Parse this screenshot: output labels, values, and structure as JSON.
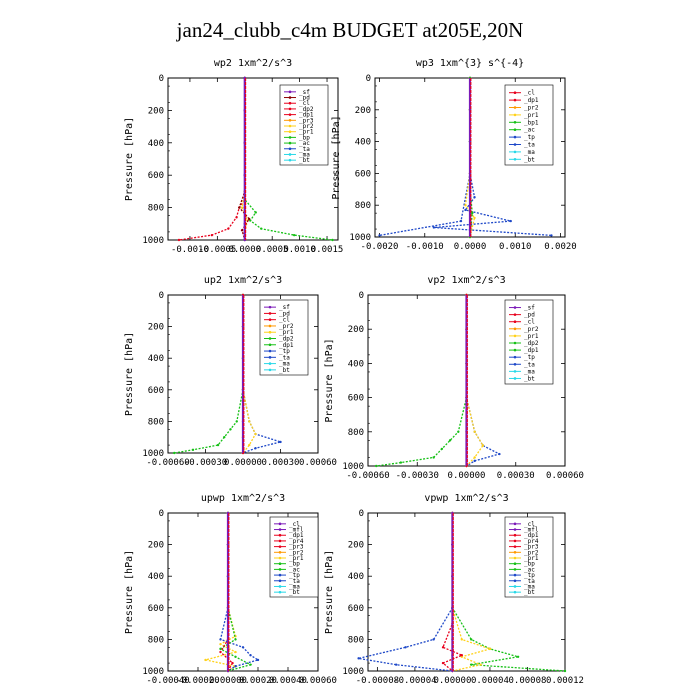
{
  "title": "jan24_clubb_c4m  BUDGET at205E,20N",
  "colors": {
    "red": "#e8001c",
    "darkred": "#8b0000",
    "orange": "#ff9900",
    "yellow": "#ffd21a",
    "green": "#16c016",
    "blue": "#1e48c8",
    "cyan": "#27d8e8",
    "purple": "#7b19b8",
    "gray": "#9a9a9a"
  },
  "chart_data": [
    {
      "type": "line",
      "title": "wp2  1xm^2/s^3",
      "ylabel": "Pressure [hPa]",
      "xlim": [
        -0.0014,
        0.0017
      ],
      "ylim": [
        1000,
        0
      ],
      "xticks": [
        -0.001,
        -0.0005,
        0.0,
        0.0005,
        0.001,
        0.0015
      ],
      "xtick_labels": [
        "-0.0010",
        "-0.0005",
        "0.0000",
        "0.0005",
        "0.0010",
        "0.0015"
      ],
      "yticks": [
        0,
        200,
        400,
        600,
        800,
        1000
      ],
      "yticks_labels": [
        "0",
        "200",
        "400",
        "600",
        "800",
        "1000"
      ],
      "legend": [
        "_sf",
        "_pd",
        "_cl",
        "_dp2",
        "_dp1",
        "_pr3",
        "_pr2",
        "_pr1",
        "_bp",
        "_ac",
        "_ta",
        "_ma",
        "_bt"
      ],
      "legend_colors": [
        "purple",
        "darkred",
        "red",
        "red",
        "red",
        "orange",
        "yellow",
        "yellow",
        "green",
        "green",
        "blue",
        "cyan",
        "cyan"
      ],
      "series": [
        {
          "name": "_dp1",
          "color": "red",
          "x": [
            0,
            0,
            0,
            0,
            0,
            -0.0001,
            -0.00015,
            -0.0003,
            -0.0006,
            -0.0012
          ],
          "y": [
            0,
            200,
            400,
            600,
            750,
            800,
            860,
            930,
            970,
            1000
          ]
        },
        {
          "name": "_bp",
          "color": "green",
          "x": [
            0,
            0,
            0,
            0,
            0,
            0.0002,
            0.0001,
            0.0003,
            0.0009,
            0.0016
          ],
          "y": [
            0,
            200,
            400,
            600,
            750,
            830,
            880,
            930,
            970,
            1000
          ]
        },
        {
          "name": "_pr1",
          "color": "yellow",
          "x": [
            0,
            0,
            0,
            0,
            -5e-05,
            5e-05,
            0,
            0
          ],
          "y": [
            0,
            200,
            400,
            700,
            800,
            880,
            950,
            1000
          ]
        },
        {
          "name": "_dp2",
          "color": "darkred",
          "x": [
            0,
            0,
            0,
            0,
            -0.0001,
            8e-05,
            -5e-05,
            0
          ],
          "y": [
            0,
            200,
            400,
            700,
            800,
            870,
            940,
            1000
          ]
        },
        {
          "name": "_ta",
          "color": "blue",
          "x": [
            0,
            0,
            0,
            0,
            0,
            0,
            0
          ],
          "y": [
            0,
            200,
            400,
            600,
            800,
            900,
            1000
          ]
        },
        {
          "name": "_cl",
          "color": "purple",
          "x": [
            0,
            0,
            0,
            0,
            0,
            0,
            0
          ],
          "y": [
            0,
            200,
            400,
            600,
            800,
            900,
            1000
          ]
        }
      ]
    },
    {
      "type": "line",
      "title": "wp3  1xm^{3} s^{-4}",
      "ylabel": "Pressure [hPa]",
      "xlim": [
        -0.0021,
        0.0021
      ],
      "ylim": [
        1000,
        0
      ],
      "xticks": [
        -0.002,
        -0.001,
        0.0,
        0.001,
        0.002
      ],
      "xtick_labels": [
        "-0.0020",
        "-0.0010",
        "0.0000",
        "0.0010",
        "0.0020"
      ],
      "yticks": [
        0,
        200,
        400,
        600,
        800,
        1000
      ],
      "yticks_labels": [
        "0",
        "200",
        "400",
        "600",
        "800",
        "1000"
      ],
      "legend": [
        "_cl",
        "_dp1",
        "_pr2",
        "_pr1",
        "_bp1",
        "_ac",
        "_tp",
        "_ta",
        "_ma",
        "_bt"
      ],
      "legend_colors": [
        "red",
        "red",
        "orange",
        "yellow",
        "green",
        "green",
        "blue",
        "blue",
        "cyan",
        "cyan"
      ],
      "series": [
        {
          "name": "_tp",
          "color": "blue",
          "x": [
            0,
            0,
            0,
            0,
            0.0001,
            -0.0001,
            0.0009,
            -0.0008,
            0.0018
          ],
          "y": [
            0,
            200,
            400,
            600,
            750,
            830,
            900,
            940,
            990
          ]
        },
        {
          "name": "_ta",
          "color": "blue",
          "x": [
            0,
            0,
            0,
            0,
            -0.0002,
            -0.002
          ],
          "y": [
            0,
            200,
            400,
            600,
            900,
            990
          ]
        },
        {
          "name": "_pr1",
          "color": "yellow",
          "x": [
            0,
            0,
            0,
            -0.0001,
            0.0001,
            0
          ],
          "y": [
            0,
            200,
            600,
            800,
            880,
            1000
          ]
        },
        {
          "name": "_dp1",
          "color": "red",
          "x": [
            0,
            0,
            0,
            0,
            0,
            0
          ],
          "y": [
            0,
            200,
            400,
            600,
            800,
            1000
          ]
        },
        {
          "name": "_bp1",
          "color": "green",
          "x": [
            0,
            0,
            0,
            0,
            5e-05,
            0
          ],
          "y": [
            0,
            200,
            400,
            700,
            850,
            1000
          ]
        }
      ]
    },
    {
      "type": "line",
      "title": "up2  1xm^2/s^3",
      "ylabel": "Pressure [hPa]",
      "xlim": [
        -0.0006,
        0.0006
      ],
      "ylim": [
        1000,
        0
      ],
      "xticks": [
        -0.0006,
        -0.0003,
        0.0,
        0.0003,
        0.0006
      ],
      "xtick_labels": [
        "-0.00060",
        "-0.00030",
        "0.00000",
        "0.00030",
        "0.00060"
      ],
      "yticks": [
        0,
        200,
        400,
        600,
        800,
        1000
      ],
      "yticks_labels": [
        "0",
        "200",
        "400",
        "600",
        "800",
        "1000"
      ],
      "legend": [
        "_sf",
        "_pd",
        "_cl",
        "_pr2",
        "_pr1",
        "_dp2",
        "_dp1",
        "_tp",
        "_ta",
        "_ma",
        "_bt"
      ],
      "legend_colors": [
        "purple",
        "red",
        "red",
        "orange",
        "yellow",
        "green",
        "green",
        "blue",
        "blue",
        "cyan",
        "cyan"
      ],
      "series": [
        {
          "name": "_dp1",
          "color": "green",
          "x": [
            0,
            0,
            0,
            0,
            -5e-05,
            -0.0001,
            -0.00015,
            -0.0002,
            -0.0004,
            -0.00055
          ],
          "y": [
            0,
            200,
            400,
            600,
            800,
            850,
            900,
            950,
            980,
            1000
          ]
        },
        {
          "name": "_tp",
          "color": "blue",
          "x": [
            0,
            0,
            0,
            0,
            5e-05,
            0.0001,
            0.0003,
            0.0001,
            0
          ],
          "y": [
            0,
            200,
            400,
            600,
            800,
            880,
            930,
            970,
            1000
          ]
        },
        {
          "name": "_pr1",
          "color": "yellow",
          "x": [
            0,
            0,
            0,
            0,
            5e-05,
            0.0001,
            5e-05,
            0
          ],
          "y": [
            0,
            200,
            400,
            600,
            800,
            880,
            950,
            1000
          ]
        },
        {
          "name": "_cl",
          "color": "red",
          "x": [
            0,
            0,
            0,
            0,
            0,
            0,
            0
          ],
          "y": [
            0,
            200,
            400,
            600,
            800,
            900,
            1000
          ]
        }
      ]
    },
    {
      "type": "line",
      "title": "vp2  1xm^2/s^3",
      "ylabel": "Pressure [hPa]",
      "xlim": [
        -0.0006,
        0.0006
      ],
      "ylim": [
        1000,
        0
      ],
      "xticks": [
        -0.0006,
        -0.0003,
        0.0,
        0.0003,
        0.0006
      ],
      "xtick_labels": [
        "-0.00060",
        "-0.00030",
        "0.00000",
        "0.00030",
        "0.00060"
      ],
      "yticks": [
        0,
        200,
        400,
        600,
        800,
        1000
      ],
      "yticks_labels": [
        "0",
        "200",
        "400",
        "600",
        "800",
        "1000"
      ],
      "legend": [
        "_sf",
        "_pd",
        "_cl",
        "_pr2",
        "_pr1",
        "_dp2",
        "_dp1",
        "_tp",
        "_ta",
        "_ma",
        "_bt"
      ],
      "legend_colors": [
        "purple",
        "red",
        "red",
        "orange",
        "yellow",
        "green",
        "green",
        "blue",
        "blue",
        "cyan",
        "cyan"
      ],
      "series": [
        {
          "name": "_dp1",
          "color": "green",
          "x": [
            0,
            0,
            0,
            0,
            -5e-05,
            -0.0001,
            -0.00015,
            -0.0002,
            -0.0004,
            -0.00055
          ],
          "y": [
            0,
            200,
            400,
            600,
            800,
            850,
            900,
            950,
            980,
            1000
          ]
        },
        {
          "name": "_tp",
          "color": "blue",
          "x": [
            0,
            0,
            0,
            0,
            5e-05,
            0.0001,
            0.0002,
            5e-05,
            0
          ],
          "y": [
            0,
            200,
            400,
            600,
            800,
            880,
            930,
            970,
            1000
          ]
        },
        {
          "name": "_pr1",
          "color": "yellow",
          "x": [
            0,
            0,
            0,
            0,
            5e-05,
            0.0001,
            5e-05,
            0
          ],
          "y": [
            0,
            200,
            400,
            600,
            800,
            880,
            950,
            1000
          ]
        },
        {
          "name": "_cl",
          "color": "red",
          "x": [
            0,
            0,
            0,
            0,
            0,
            0,
            0
          ],
          "y": [
            0,
            200,
            400,
            600,
            800,
            900,
            1000
          ]
        }
      ]
    },
    {
      "type": "line",
      "title": "upwp  1xm^2/s^3",
      "ylabel": "Pressure [hPa]",
      "xlim": [
        -0.0004,
        0.0006
      ],
      "ylim": [
        1000,
        0
      ],
      "xticks": [
        -0.0004,
        -0.0002,
        0.0,
        0.0002,
        0.0004,
        0.0006
      ],
      "xtick_labels": [
        "-0.00040",
        "-0.00020",
        "0.00000",
        "0.00020",
        "0.00040",
        "0.00060"
      ],
      "yticks": [
        0,
        200,
        400,
        600,
        800,
        1000
      ],
      "yticks_labels": [
        "0",
        "200",
        "400",
        "600",
        "800",
        "1000"
      ],
      "legend": [
        "_cl",
        "_mfl",
        "_dp1",
        "_pr4",
        "_pr3",
        "_pr2",
        "_pr1",
        "_bp",
        "_ac",
        "_tp",
        "_ta",
        "_ma",
        "_bt"
      ],
      "legend_colors": [
        "purple",
        "purple",
        "red",
        "red",
        "red",
        "orange",
        "yellow",
        "green",
        "green",
        "blue",
        "blue",
        "cyan",
        "cyan"
      ],
      "series": [
        {
          "name": "_pr1",
          "color": "yellow",
          "x": [
            0,
            0,
            0,
            0,
            5e-05,
            -5e-05,
            5e-05,
            -0.00015,
            5e-05,
            0
          ],
          "y": [
            0,
            200,
            400,
            600,
            780,
            830,
            880,
            930,
            970,
            1000
          ]
        },
        {
          "name": "_tp",
          "color": "blue",
          "x": [
            0,
            0,
            0,
            0,
            -5e-05,
            0.0001,
            0.00015,
            0.0002,
            5e-05,
            0
          ],
          "y": [
            0,
            200,
            400,
            600,
            800,
            850,
            900,
            930,
            970,
            1000
          ]
        },
        {
          "name": "_bp",
          "color": "green",
          "x": [
            0,
            0,
            0,
            0,
            5e-05,
            -5e-05,
            5e-05,
            0.00015,
            0
          ],
          "y": [
            0,
            200,
            400,
            600,
            800,
            860,
            910,
            960,
            1000
          ]
        },
        {
          "name": "_dp1",
          "color": "red",
          "x": [
            0,
            0,
            0,
            0,
            0,
            -5e-05,
            3e-05,
            0
          ],
          "y": [
            0,
            200,
            400,
            600,
            800,
            880,
            950,
            1000
          ]
        },
        {
          "name": "_cl",
          "color": "purple",
          "x": [
            0,
            0,
            0,
            0,
            0,
            0,
            0
          ],
          "y": [
            0,
            200,
            400,
            600,
            800,
            900,
            1000
          ]
        }
      ]
    },
    {
      "type": "line",
      "title": "vpwp  1xm^2/s^3",
      "ylabel": "Pressure [hPa]",
      "xlim": [
        -9e-05,
        0.00012
      ],
      "ylim": [
        1000,
        0
      ],
      "xticks": [
        -8e-05,
        -4e-05,
        0.0,
        4e-05,
        8e-05,
        0.00012
      ],
      "xtick_labels": [
        "-0.00008",
        "-0.00004",
        "0.00000",
        "0.00004",
        "0.00008",
        "0.00012"
      ],
      "yticks": [
        0,
        200,
        400,
        600,
        800,
        1000
      ],
      "yticks_labels": [
        "0",
        "200",
        "400",
        "600",
        "800",
        "1000"
      ],
      "legend": [
        "_cl",
        "_mfl",
        "_dp1",
        "_pr4",
        "_pr3",
        "_pr2",
        "_pr1",
        "_bp",
        "_ac",
        "_tp",
        "_ta",
        "_ma",
        "_bt"
      ],
      "legend_colors": [
        "purple",
        "purple",
        "red",
        "red",
        "red",
        "orange",
        "yellow",
        "green",
        "green",
        "blue",
        "blue",
        "cyan",
        "cyan"
      ],
      "series": [
        {
          "name": "_tp",
          "color": "blue",
          "x": [
            0,
            0,
            0,
            0,
            -2e-05,
            -5e-05,
            -0.0001,
            -6e-05,
            0
          ],
          "y": [
            0,
            200,
            400,
            600,
            800,
            850,
            920,
            960,
            1000
          ]
        },
        {
          "name": "_bp",
          "color": "green",
          "x": [
            0,
            0,
            0,
            0,
            2e-05,
            4e-05,
            7e-05,
            2e-05,
            0.00012
          ],
          "y": [
            0,
            200,
            400,
            600,
            800,
            860,
            910,
            960,
            1000
          ]
        },
        {
          "name": "_pr1",
          "color": "yellow",
          "x": [
            0,
            0,
            0,
            0,
            1e-05,
            4e-05,
            1e-05,
            3e-05,
            0
          ],
          "y": [
            0,
            200,
            400,
            600,
            800,
            860,
            910,
            960,
            1000
          ]
        },
        {
          "name": "_dp1",
          "color": "red",
          "x": [
            0,
            0,
            0,
            0,
            -1e-05,
            1e-05,
            -1e-05,
            0
          ],
          "y": [
            0,
            200,
            400,
            700,
            850,
            900,
            950,
            1000
          ]
        },
        {
          "name": "_cl",
          "color": "purple",
          "x": [
            0,
            0,
            0,
            0,
            0,
            0,
            0
          ],
          "y": [
            0,
            200,
            400,
            600,
            800,
            900,
            1000
          ]
        }
      ]
    }
  ]
}
